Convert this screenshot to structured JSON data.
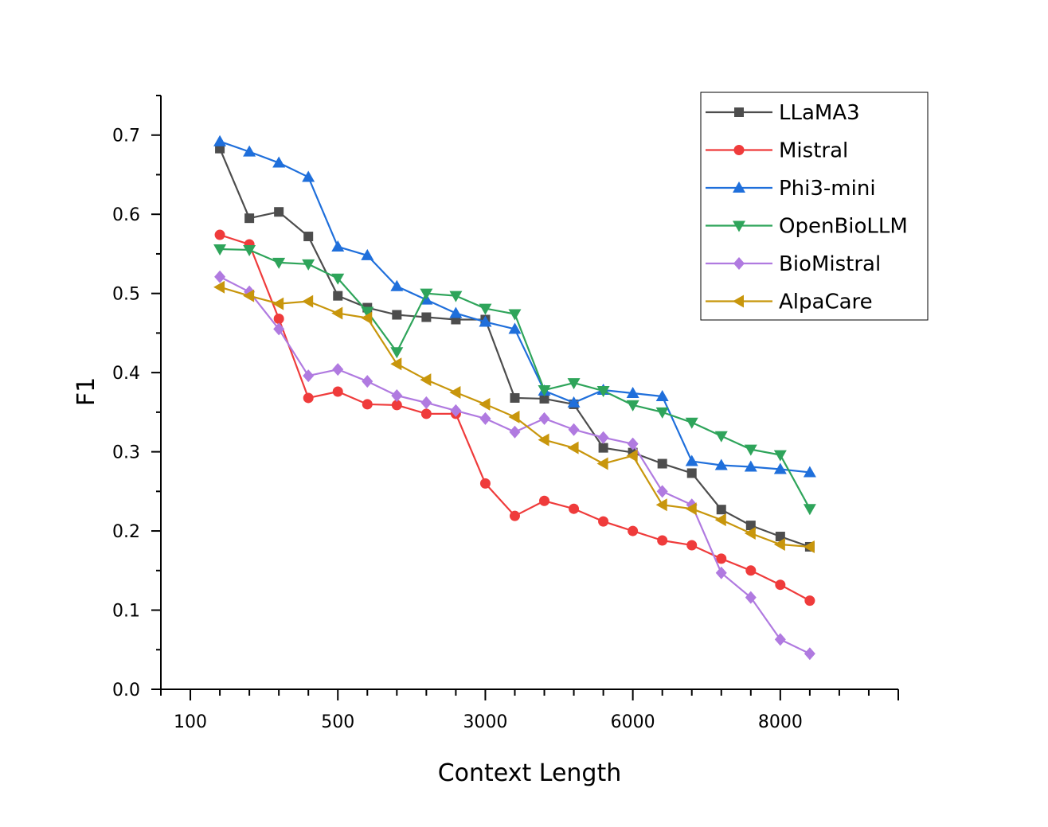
{
  "chart_data": {
    "type": "line",
    "title": "",
    "xlabel": "Context Length",
    "ylabel": "F1",
    "x_index_range": [
      -1,
      24
    ],
    "x_ticks": [
      {
        "index": 0,
        "label": "100"
      },
      {
        "index": 5,
        "label": "500"
      },
      {
        "index": 10,
        "label": "3000"
      },
      {
        "index": 15,
        "label": "6000"
      },
      {
        "index": 20,
        "label": "8000"
      }
    ],
    "ylim": [
      0,
      0.75
    ],
    "y_ticks": [
      "0.0",
      "0.1",
      "0.2",
      "0.3",
      "0.4",
      "0.5",
      "0.6",
      "0.7"
    ],
    "x": [
      1,
      2,
      3,
      4,
      5,
      6,
      7,
      8,
      9,
      10,
      11,
      12,
      13,
      14,
      15,
      16,
      17,
      18,
      19,
      20,
      21
    ],
    "legend_position": "top-right",
    "series": [
      {
        "name": "LLaMA3",
        "color": "#4d4d4d",
        "marker": "square",
        "values": [
          0.683,
          0.595,
          0.603,
          0.572,
          0.497,
          0.482,
          0.473,
          0.47,
          0.467,
          0.467,
          0.368,
          0.367,
          0.36,
          0.305,
          0.299,
          0.285,
          0.273,
          0.227,
          0.207,
          0.193,
          0.18
        ]
      },
      {
        "name": "Mistral",
        "color": "#ef3b3b",
        "marker": "circle",
        "values": [
          0.574,
          0.562,
          0.468,
          0.368,
          0.376,
          0.36,
          0.359,
          0.348,
          0.348,
          0.26,
          0.219,
          0.238,
          0.228,
          0.212,
          0.2,
          0.188,
          0.182,
          0.165,
          0.15,
          0.132,
          0.112
        ]
      },
      {
        "name": "Phi3-mini",
        "color": "#1f6fdb",
        "marker": "triangle-up",
        "values": [
          0.692,
          0.679,
          0.665,
          0.647,
          0.559,
          0.548,
          0.509,
          0.492,
          0.475,
          0.464,
          0.455,
          0.377,
          0.362,
          0.378,
          0.374,
          0.37,
          0.288,
          0.283,
          0.281,
          0.278,
          0.274
        ]
      },
      {
        "name": "OpenBioLLM",
        "color": "#2ea45a",
        "marker": "triangle-down",
        "values": [
          0.556,
          0.555,
          0.539,
          0.537,
          0.519,
          0.477,
          0.426,
          0.5,
          0.497,
          0.481,
          0.474,
          0.378,
          0.387,
          0.377,
          0.359,
          0.35,
          0.337,
          0.32,
          0.303,
          0.296,
          0.228
        ]
      },
      {
        "name": "BioMistral",
        "color": "#b07ae0",
        "marker": "diamond",
        "values": [
          0.521,
          0.502,
          0.455,
          0.396,
          0.404,
          0.389,
          0.371,
          0.362,
          0.352,
          0.342,
          0.325,
          0.342,
          0.328,
          0.318,
          0.31,
          0.25,
          0.233,
          0.147,
          0.116,
          0.063,
          0.045
        ]
      },
      {
        "name": "AlpaCare",
        "color": "#c8960c",
        "marker": "triangle-left",
        "values": [
          0.508,
          0.497,
          0.487,
          0.49,
          0.475,
          0.469,
          0.411,
          0.391,
          0.375,
          0.36,
          0.344,
          0.315,
          0.305,
          0.285,
          0.295,
          0.233,
          0.228,
          0.214,
          0.197,
          0.183,
          0.18
        ]
      }
    ]
  }
}
